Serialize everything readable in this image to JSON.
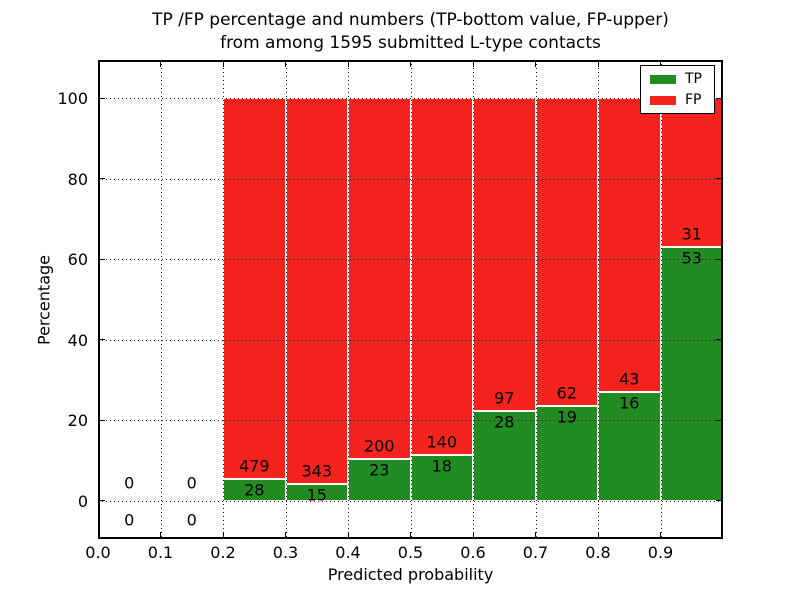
{
  "figure": {
    "title_line1": "TP /FP percentage and numbers (TP-bottom value, FP-upper)",
    "title_line2": "from among 1595 submitted L-type contacts"
  },
  "chart_data": {
    "type": "bar",
    "variant": "stacked-percentage-histogram",
    "title": "TP /FP percentage and numbers (TP-bottom value, FP-upper) from among 1595 submitted L-type contacts",
    "xlabel": "Predicted probability",
    "ylabel": "Percentage",
    "xlim": [
      0.0,
      1.0
    ],
    "ylim": [
      -9.5,
      109.5
    ],
    "bin_width": 0.1,
    "grid": true,
    "x_tick_values": [
      0.0,
      0.1,
      0.2,
      0.3,
      0.4,
      0.5,
      0.6,
      0.7,
      0.8,
      0.9
    ],
    "x_tick_labels": [
      "0.0",
      "0.1",
      "0.2",
      "0.3",
      "0.4",
      "0.5",
      "0.6",
      "0.7",
      "0.8",
      "0.9"
    ],
    "y_tick_values": [
      0,
      20,
      40,
      60,
      80,
      100
    ],
    "y_tick_labels": [
      "0",
      "20",
      "40",
      "60",
      "80",
      "100"
    ],
    "legend": {
      "position": "upper right",
      "entries": [
        {
          "label": "TP",
          "color": "#228b22"
        },
        {
          "label": "FP",
          "color": "#f5231d"
        }
      ]
    },
    "annotation_note": "TP count shown below segment boundary, FP count above; empty bins show 0 / 0 around the zero line",
    "bins": [
      {
        "x_start": 0.0,
        "tp_count": 0,
        "fp_count": 0,
        "tp_pct": null,
        "fp_pct": null
      },
      {
        "x_start": 0.1,
        "tp_count": 0,
        "fp_count": 0,
        "tp_pct": null,
        "fp_pct": null
      },
      {
        "x_start": 0.2,
        "tp_count": 28,
        "fp_count": 479,
        "tp_pct": 5.52,
        "fp_pct": 94.48
      },
      {
        "x_start": 0.3,
        "tp_count": 15,
        "fp_count": 343,
        "tp_pct": 4.19,
        "fp_pct": 95.81
      },
      {
        "x_start": 0.4,
        "tp_count": 23,
        "fp_count": 200,
        "tp_pct": 10.31,
        "fp_pct": 89.69
      },
      {
        "x_start": 0.5,
        "tp_count": 18,
        "fp_count": 140,
        "tp_pct": 11.39,
        "fp_pct": 88.61
      },
      {
        "x_start": 0.6,
        "tp_count": 28,
        "fp_count": 97,
        "tp_pct": 22.4,
        "fp_pct": 77.6
      },
      {
        "x_start": 0.7,
        "tp_count": 19,
        "fp_count": 62,
        "tp_pct": 23.46,
        "fp_pct": 76.54
      },
      {
        "x_start": 0.8,
        "tp_count": 16,
        "fp_count": 43,
        "tp_pct": 27.12,
        "fp_pct": 72.88
      },
      {
        "x_start": 0.9,
        "tp_count": 53,
        "fp_count": 31,
        "tp_pct": 63.1,
        "fp_pct": 36.9
      }
    ],
    "colors": {
      "tp": "#228b22",
      "fp": "#f5231d",
      "bar_edge": "#ffffff",
      "grid": "#1a1a1a",
      "frame": "#000000",
      "text": "#000000",
      "background": "#ffffff"
    }
  }
}
